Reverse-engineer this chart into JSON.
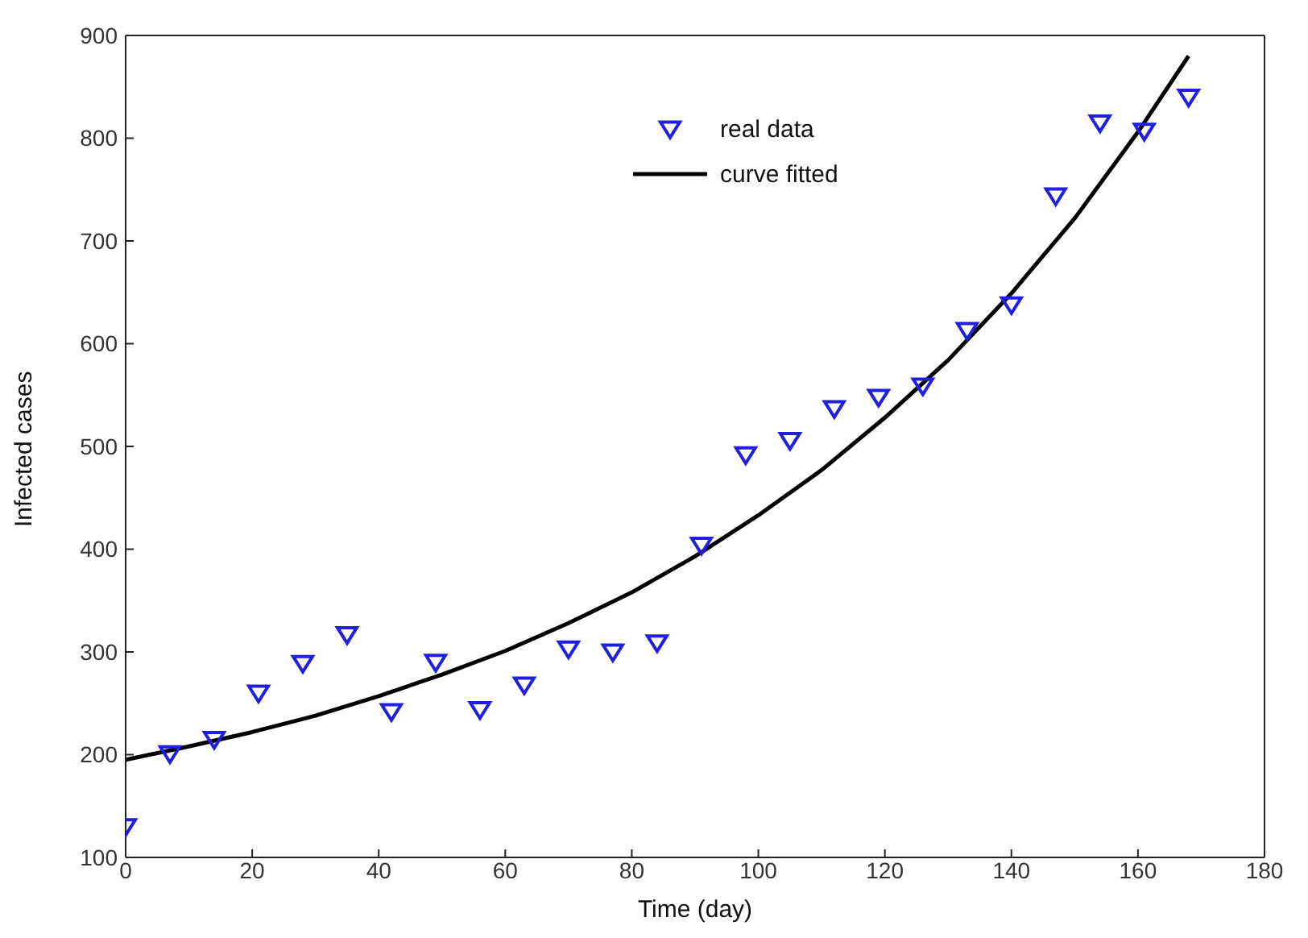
{
  "chart_data": {
    "type": "scatter",
    "xlabel": "Time (day)",
    "ylabel": "Infected cases",
    "xlim": [
      0,
      180
    ],
    "xticks": [
      0,
      20,
      40,
      60,
      80,
      100,
      120,
      140,
      160,
      180
    ],
    "ylim": [
      100,
      900
    ],
    "yticks": [
      100,
      200,
      300,
      400,
      500,
      600,
      700,
      800,
      900
    ],
    "legend": "top",
    "series": [
      {
        "name": "real data",
        "marker": "triangle",
        "color": "#1f1fdd",
        "x": [
          0,
          7,
          14,
          21,
          28,
          35,
          42,
          49,
          56,
          63,
          70,
          77,
          84,
          91,
          98,
          105,
          112,
          119,
          126,
          133,
          140,
          147,
          154,
          161,
          168
        ],
        "values": [
          130,
          201,
          215,
          260,
          289,
          317,
          242,
          290,
          244,
          268,
          303,
          300,
          309,
          404,
          492,
          506,
          537,
          548,
          559,
          613,
          638,
          744,
          815,
          807,
          840
        ]
      },
      {
        "name": "curve fitted",
        "type": "line",
        "marker": "none",
        "line_style": "solid",
        "color": "#000000",
        "x": [
          0,
          10,
          20,
          30,
          40,
          50,
          60,
          70,
          80,
          90,
          100,
          110,
          120,
          130,
          140,
          150,
          160,
          168
        ],
        "values": [
          195,
          208,
          222,
          238,
          257,
          278,
          301,
          328,
          358,
          393,
          433,
          477,
          528,
          584,
          649,
          722,
          806,
          880
        ]
      }
    ]
  }
}
